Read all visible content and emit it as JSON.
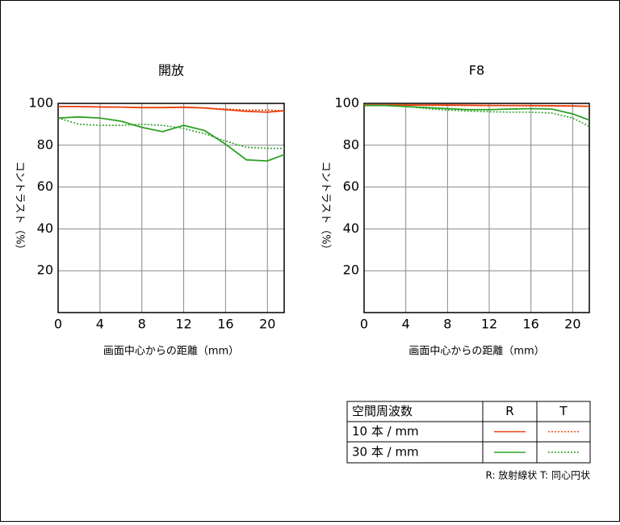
{
  "charts": [
    {
      "type": "line",
      "title": "開放",
      "x_label": "画面中心からの距離（mm）",
      "y_label": "コントラスト（%）",
      "x": [
        0,
        2,
        4,
        6,
        8,
        10,
        12,
        14,
        16,
        18,
        20,
        21.6
      ],
      "xlim": [
        0,
        21.6
      ],
      "xticks": [
        0,
        4,
        8,
        12,
        16,
        20
      ],
      "ylim": [
        0,
        100
      ],
      "yticks": [
        20,
        40,
        60,
        80,
        100
      ],
      "grid": true,
      "series": [
        {
          "color": "#e8400c",
          "line": "solid",
          "values": [
            98.5,
            98.5,
            98.3,
            98.2,
            98,
            98,
            98.2,
            97.8,
            97,
            96.2,
            95.8,
            96.5
          ]
        },
        {
          "color": "#e8400c",
          "line": "dotted",
          "values": [
            98.5,
            98.5,
            98.3,
            98.2,
            98,
            98,
            98,
            97.8,
            97.3,
            96.8,
            96.8,
            96.5
          ]
        },
        {
          "color": "#2ea024",
          "line": "solid",
          "values": [
            93,
            93.5,
            93,
            91.5,
            88.5,
            86.5,
            89.5,
            87,
            80.5,
            73,
            72.5,
            75.5
          ]
        },
        {
          "color": "#2ea024",
          "line": "dotted",
          "values": [
            93,
            90,
            89.5,
            89.5,
            90,
            89.5,
            88,
            85.5,
            82,
            79,
            78.5,
            78.5
          ]
        }
      ]
    },
    {
      "type": "line",
      "title": "F8",
      "x_label": "画面中心からの距離（mm）",
      "y_label": "コントラスト（%）",
      "x": [
        0,
        2,
        4,
        6,
        8,
        10,
        12,
        14,
        16,
        18,
        20,
        21.6
      ],
      "xlim": [
        0,
        21.6
      ],
      "xticks": [
        0,
        4,
        8,
        12,
        16,
        20
      ],
      "ylim": [
        0,
        100
      ],
      "yticks": [
        20,
        40,
        60,
        80,
        100
      ],
      "grid": true,
      "series": [
        {
          "color": "#e8400c",
          "line": "solid",
          "values": [
            99.2,
            99.2,
            99.2,
            99.2,
            99.2,
            99.1,
            99,
            99,
            99,
            98.9,
            98.8,
            98.6
          ]
        },
        {
          "color": "#e8400c",
          "line": "dotted",
          "values": [
            99.2,
            99.2,
            99.2,
            99.1,
            99,
            99,
            99,
            98.9,
            98.8,
            98.7,
            98.6,
            98.6
          ]
        },
        {
          "color": "#2ea024",
          "line": "solid",
          "values": [
            99,
            99,
            98.5,
            98,
            97.5,
            97,
            97,
            97.3,
            97.5,
            97.3,
            95,
            92
          ]
        },
        {
          "color": "#2ea024",
          "line": "dotted",
          "values": [
            99,
            99,
            98.6,
            97.5,
            96.8,
            96.3,
            96,
            95.8,
            95.8,
            95.4,
            93,
            89
          ]
        }
      ]
    }
  ],
  "legend": {
    "header": [
      "空間周波数",
      "R",
      "T"
    ],
    "rows": [
      "10 本 / mm",
      "30 本 / mm"
    ],
    "note": "R: 放射線状  T: 同心円状"
  }
}
